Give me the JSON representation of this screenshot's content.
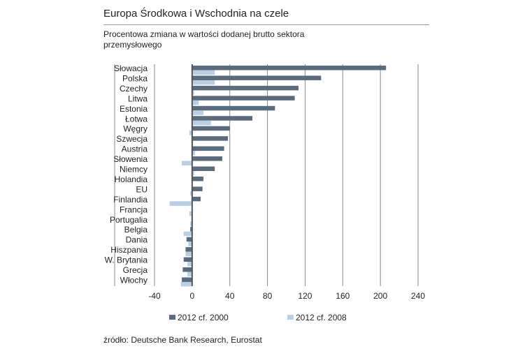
{
  "title": "Europa Środkowa i Wschodnia na czele",
  "subtitle": "Procentowa zmiana w wartości dodanej brutto sektora przemysłowego",
  "source": "źródło: Deutsche Bank Research, Eurostat",
  "chart_data": {
    "type": "bar",
    "orientation": "horizontal",
    "categories": [
      "Słowacja",
      "Polska",
      "Czechy",
      "Litwa",
      "Estonia",
      "Łotwa",
      "Węgry",
      "Szwecja",
      "Austria",
      "Słowenia",
      "Niemcy",
      "Holandia",
      "EU",
      "Finlandia",
      "Francja",
      "Portugalia",
      "Belgia",
      "Dania",
      "Hiszpania",
      "W. Brytania",
      "Grecja",
      "Włochy"
    ],
    "series": [
      {
        "name": "2012 cf. 2000",
        "color": "#5a6b7d",
        "values": [
          206,
          137,
          113,
          109,
          88,
          64,
          40,
          38,
          34,
          32,
          24,
          12,
          11,
          9,
          0,
          0,
          -2,
          -6,
          -7,
          -9,
          -10,
          -11
        ]
      },
      {
        "name": "2012 cf. 2008",
        "color": "#b8cfe6",
        "values": [
          24,
          24,
          2,
          7,
          12,
          20,
          -3,
          1,
          3,
          -11,
          2,
          0,
          -2,
          -24,
          -3,
          -2,
          -9,
          -4,
          -7,
          -5,
          -5,
          -12
        ]
      }
    ],
    "xlim": [
      -40,
      240
    ],
    "xticks": [
      "-40",
      "0",
      "40",
      "80",
      "120",
      "160",
      "200",
      "240"
    ],
    "grid": true,
    "legend": "bottom"
  }
}
